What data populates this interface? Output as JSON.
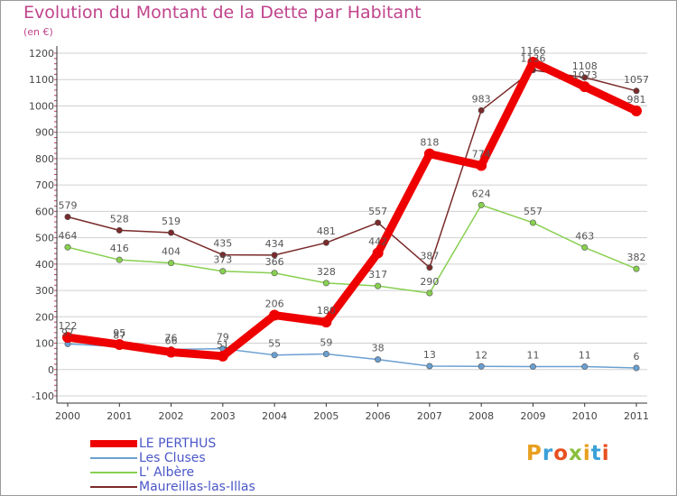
{
  "title": "Evolution du Montant de la Dette par Habitant",
  "unit": "(en €)",
  "logo": "Proxiti",
  "colors": {
    "title": "#c0448c",
    "legend_text": "#4b57c8",
    "grid": "#d0d0d0"
  },
  "chart_data": {
    "type": "line",
    "title": "Evolution du Montant de la Dette par Habitant",
    "ylabel": "(en €)",
    "xlabel": "",
    "ylim": [
      -100,
      1200
    ],
    "yticks": [
      "-100",
      "0",
      "100",
      "200",
      "300",
      "400",
      "500",
      "600",
      "700",
      "800",
      "900",
      "1000",
      "1100",
      "1200"
    ],
    "categories": [
      "2000",
      "2001",
      "2002",
      "2003",
      "2004",
      "2005",
      "2006",
      "2007",
      "2008",
      "2009",
      "2010",
      "2011"
    ],
    "legend_position": "bottom-left",
    "grid": true,
    "series": [
      {
        "name": "LE PERTHUS",
        "color": "#ee0000",
        "values": [
          122,
          95,
          66,
          51,
          206,
          180,
          442,
          818,
          774,
          1166,
          1073,
          981
        ]
      },
      {
        "name": "Les Cluses",
        "color": "#6a9fd0",
        "values": [
          97,
          87,
          76,
          79,
          55,
          59,
          38,
          13,
          12,
          11,
          11,
          6
        ]
      },
      {
        "name": "L' Albère",
        "color": "#88d050",
        "values": [
          464,
          416,
          404,
          373,
          366,
          328,
          317,
          290,
          624,
          557,
          463,
          382
        ]
      },
      {
        "name": "Maureillas-las-Illas",
        "color": "#7a2a2a",
        "values": [
          579,
          528,
          519,
          435,
          434,
          481,
          557,
          387,
          983,
          1136,
          1108,
          1057
        ]
      }
    ]
  }
}
